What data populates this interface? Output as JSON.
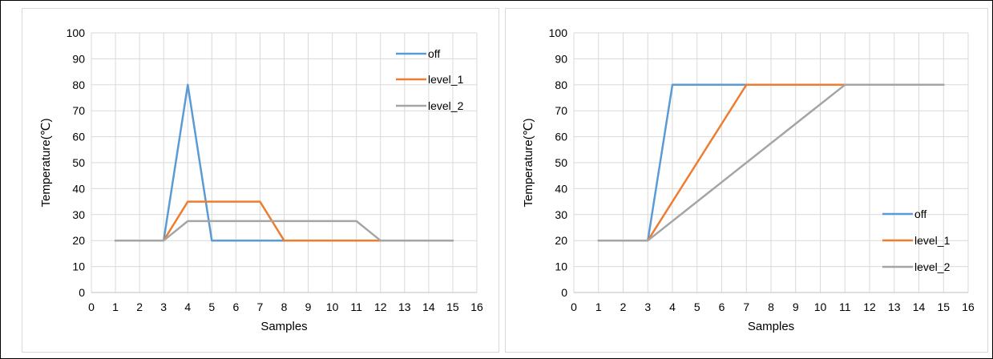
{
  "chart_data": [
    {
      "type": "line",
      "xlabel": "Samples",
      "ylabel": "Temperature(℃)",
      "xlim": [
        0,
        16
      ],
      "ylim": [
        0,
        100
      ],
      "xticks": [
        0,
        1,
        2,
        3,
        4,
        5,
        6,
        7,
        8,
        9,
        10,
        11,
        12,
        13,
        14,
        15,
        16
      ],
      "yticks": [
        0,
        10,
        20,
        30,
        40,
        50,
        60,
        70,
        80,
        90,
        100
      ],
      "grid": true,
      "legend_position": "top-right",
      "series": [
        {
          "name": "off",
          "color": "#5b9bd5",
          "points": [
            [
              1,
              20
            ],
            [
              3,
              20
            ],
            [
              4,
              80
            ],
            [
              5,
              20
            ],
            [
              15,
              20
            ]
          ]
        },
        {
          "name": "level_1",
          "color": "#ed7d31",
          "points": [
            [
              1,
              20
            ],
            [
              3,
              20
            ],
            [
              4,
              35
            ],
            [
              7,
              35
            ],
            [
              8,
              20
            ],
            [
              15,
              20
            ]
          ]
        },
        {
          "name": "level_2",
          "color": "#a5a5a5",
          "points": [
            [
              1,
              20
            ],
            [
              3,
              20
            ],
            [
              4,
              27.5
            ],
            [
              11,
              27.5
            ],
            [
              12,
              20
            ],
            [
              15,
              20
            ]
          ]
        }
      ]
    },
    {
      "type": "line",
      "xlabel": "Samples",
      "ylabel": "Temperature(℃)",
      "xlim": [
        0,
        16
      ],
      "ylim": [
        0,
        100
      ],
      "xticks": [
        0,
        1,
        2,
        3,
        4,
        5,
        6,
        7,
        8,
        9,
        10,
        11,
        12,
        13,
        14,
        15,
        16
      ],
      "yticks": [
        0,
        10,
        20,
        30,
        40,
        50,
        60,
        70,
        80,
        90,
        100
      ],
      "grid": true,
      "legend_position": "bottom-right",
      "series": [
        {
          "name": "off",
          "color": "#5b9bd5",
          "points": [
            [
              1,
              20
            ],
            [
              3,
              20
            ],
            [
              4,
              80
            ],
            [
              15,
              80
            ]
          ]
        },
        {
          "name": "level_1",
          "color": "#ed7d31",
          "points": [
            [
              1,
              20
            ],
            [
              3,
              20
            ],
            [
              7,
              80
            ],
            [
              15,
              80
            ]
          ]
        },
        {
          "name": "level_2",
          "color": "#a5a5a5",
          "points": [
            [
              1,
              20
            ],
            [
              3,
              20
            ],
            [
              11,
              80
            ],
            [
              15,
              80
            ]
          ]
        }
      ]
    }
  ]
}
